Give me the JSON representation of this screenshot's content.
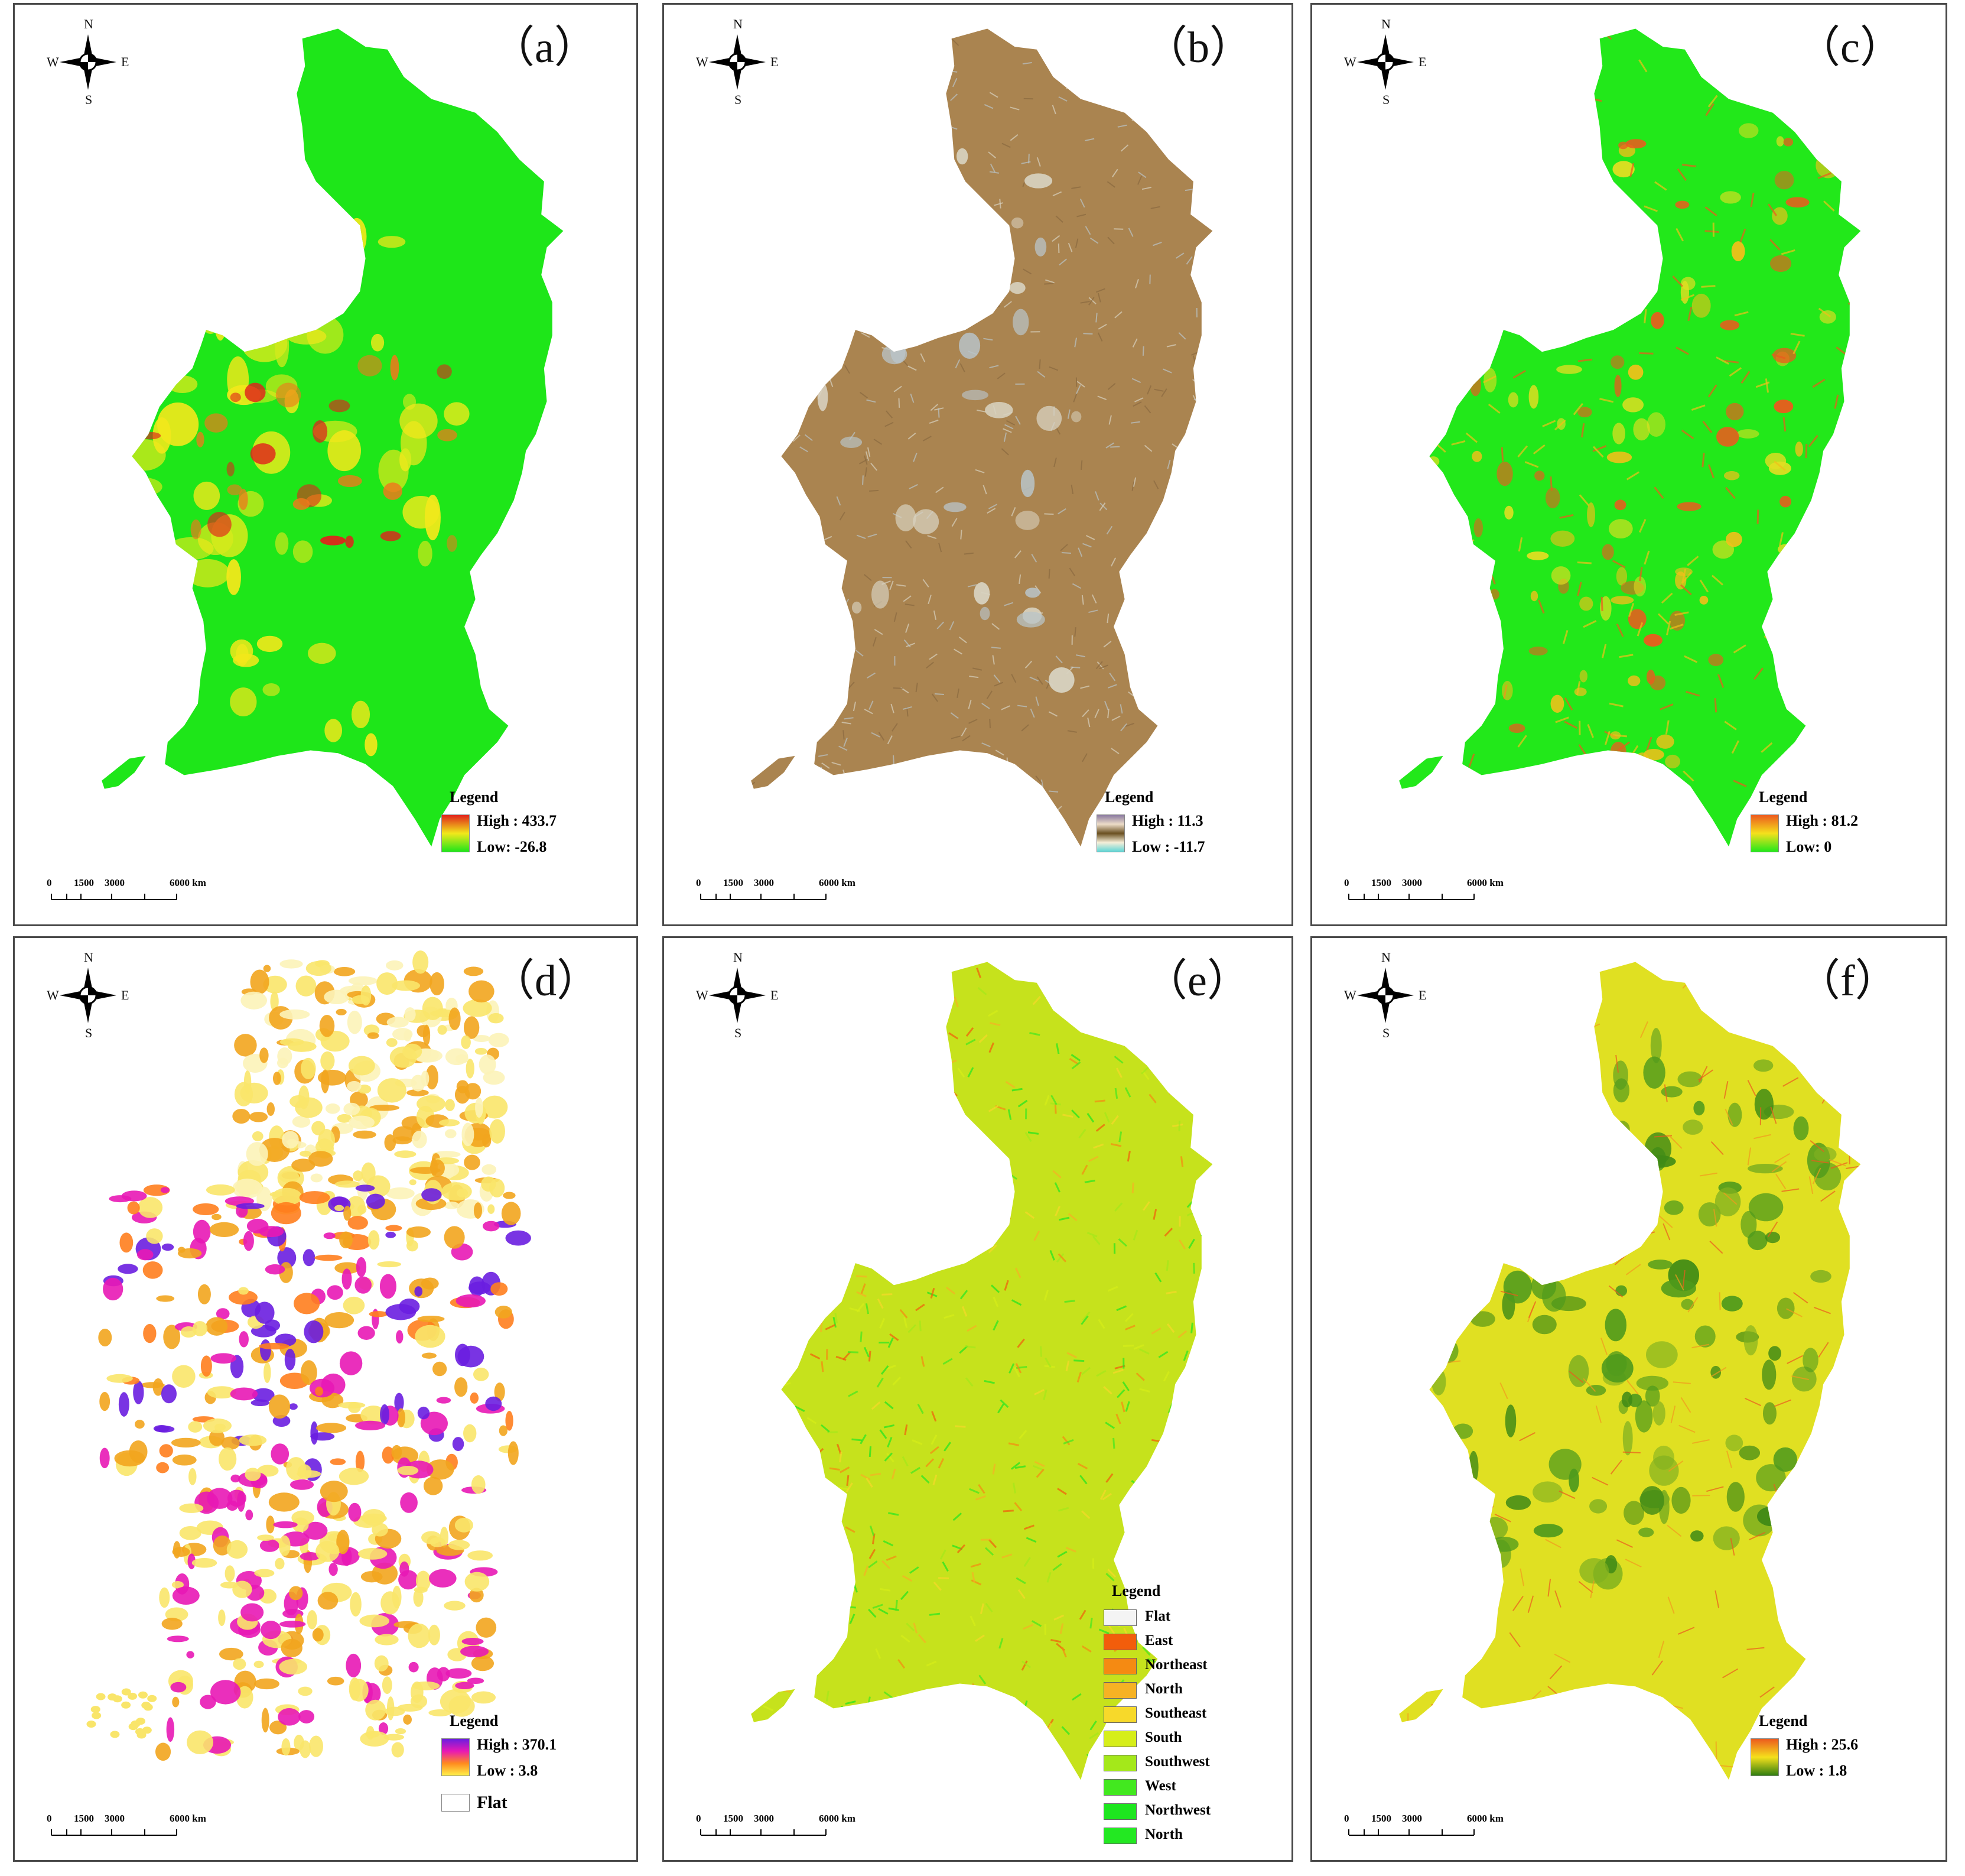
{
  "figure": {
    "compass": {
      "n": "N",
      "s": "S",
      "w": "W",
      "e": "E"
    },
    "legend_title": "Legend",
    "scale_labels": [
      "0",
      "1500",
      "3000",
      "6000 km"
    ]
  },
  "panels": [
    {
      "label": "（a）",
      "high": "High : 433.7",
      "low": "Low: -26.8",
      "colors": {
        "land": "#1ee619",
        "mid": "#f2e81b",
        "hot": "#e0221b"
      }
    },
    {
      "label": "（b）",
      "high": "High : 11.3",
      "low": "Low : -11.7",
      "colors": {
        "land": "#aa8450",
        "mid": "#b9c4c8",
        "hot": "#d8d2c0"
      }
    },
    {
      "label": "（c）",
      "high": "High : 81.2",
      "low": "Low: 0",
      "colors": {
        "land": "#22e81a",
        "mid": "#f1c01a",
        "hot": "#ec5a1e"
      }
    },
    {
      "label": "（d）",
      "high": "High : 370.1",
      "low": "Low : 3.8",
      "flat": "Flat",
      "colors": {
        "light": "#f9e56a",
        "mid": "#f2a51e",
        "hot": "#e818b5",
        "deep": "#6a1ee0"
      }
    },
    {
      "label": "（e）",
      "aspect_classes": [
        "Flat",
        "East",
        "Northeast",
        "North",
        "Southeast",
        "South",
        "Southwest",
        "West",
        "Northwest",
        "North"
      ],
      "aspect_colors": [
        "#f4f4f4",
        "#f25d0b",
        "#f58a12",
        "#f6b224",
        "#f7d92a",
        "#d6ee19",
        "#a4e81a",
        "#42e81f",
        "#1de61f",
        "#23e822"
      ]
    },
    {
      "label": "（f）",
      "high": "High : 25.6",
      "low": "Low : 1.8",
      "colors": {
        "land": "#e0e022",
        "mid": "#4f9a1c",
        "hot": "#ec5a1e"
      }
    }
  ]
}
